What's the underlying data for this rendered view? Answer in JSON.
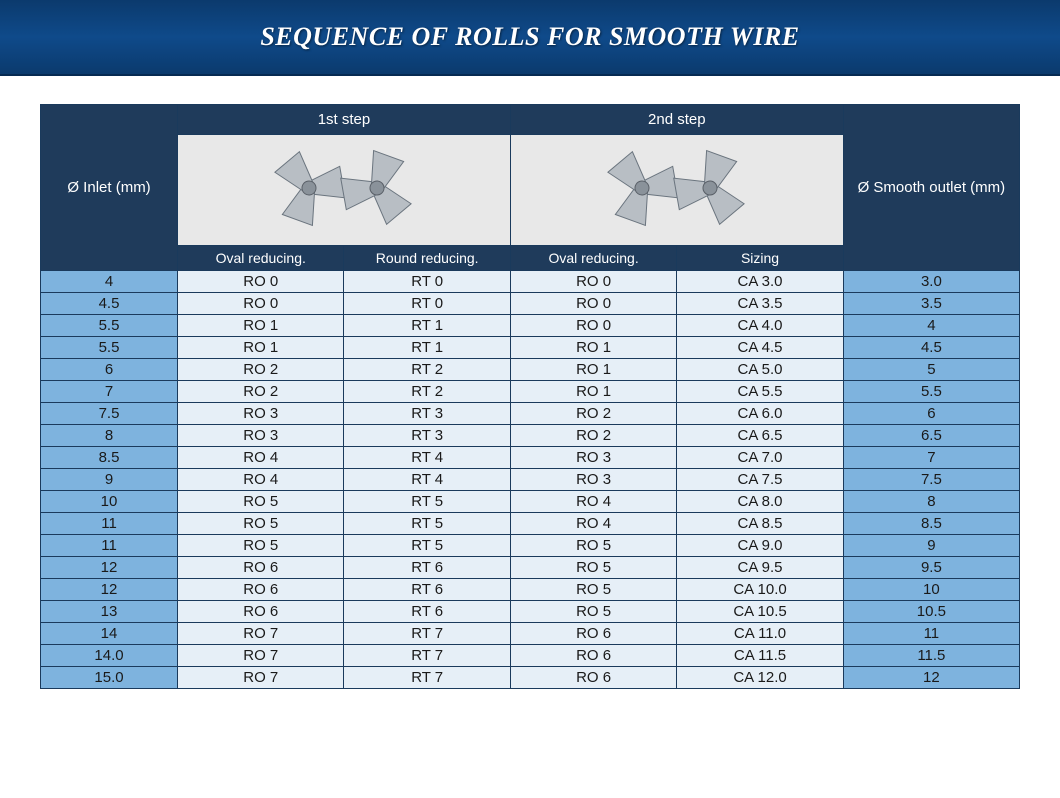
{
  "page": {
    "title": "SEQUENCE OF ROLLS FOR SMOOTH WIRE",
    "banner_bg_top": "#0b3a6d",
    "banner_bg_mid": "#0f4a8a",
    "title_color": "#ffffff"
  },
  "table": {
    "header": {
      "inlet": "Ø Inlet (mm)",
      "step1": "1st step",
      "step2": "2nd step",
      "outlet": "Ø Smooth outlet (mm)",
      "sub": {
        "oval_reducing": "Oval reducing.",
        "round_reducing": "Round reducing.",
        "sizing": "Sizing"
      }
    },
    "colors": {
      "header_bg": "#1f3b5b",
      "header_fg": "#ffffff",
      "image_bg": "#e8e8e8",
      "inlet_bg": "#7eb3de",
      "data_bg": "#e6eff7",
      "outlet_bg": "#7eb3de",
      "border": "#1a3a5c",
      "text": "#1a1a1a",
      "font_size_header": 15,
      "font_size_sub": 14,
      "font_size_body": 15
    },
    "column_widths_pct": [
      14,
      17,
      17,
      17,
      17,
      18
    ],
    "rows": [
      {
        "inlet": "4",
        "s1_oval": "RO 0",
        "s1_round": "RT 0",
        "s2_oval": "RO 0",
        "s2_size": "CA 3.0",
        "outlet": "3.0"
      },
      {
        "inlet": "4.5",
        "s1_oval": "RO 0",
        "s1_round": "RT 0",
        "s2_oval": "RO 0",
        "s2_size": "CA 3.5",
        "outlet": "3.5"
      },
      {
        "inlet": "5.5",
        "s1_oval": "RO 1",
        "s1_round": "RT 1",
        "s2_oval": "RO 0",
        "s2_size": "CA 4.0",
        "outlet": "4"
      },
      {
        "inlet": "5.5",
        "s1_oval": "RO 1",
        "s1_round": "RT 1",
        "s2_oval": "RO 1",
        "s2_size": "CA 4.5",
        "outlet": "4.5"
      },
      {
        "inlet": "6",
        "s1_oval": "RO 2",
        "s1_round": "RT 2",
        "s2_oval": "RO 1",
        "s2_size": "CA 5.0",
        "outlet": "5"
      },
      {
        "inlet": "7",
        "s1_oval": "RO 2",
        "s1_round": "RT 2",
        "s2_oval": "RO 1",
        "s2_size": "CA 5.5",
        "outlet": "5.5"
      },
      {
        "inlet": "7.5",
        "s1_oval": "RO 3",
        "s1_round": "RT 3",
        "s2_oval": "RO 2",
        "s2_size": "CA 6.0",
        "outlet": "6"
      },
      {
        "inlet": "8",
        "s1_oval": "RO 3",
        "s1_round": "RT 3",
        "s2_oval": "RO 2",
        "s2_size": "CA 6.5",
        "outlet": "6.5"
      },
      {
        "inlet": "8.5",
        "s1_oval": "RO 4",
        "s1_round": "RT 4",
        "s2_oval": "RO 3",
        "s2_size": "CA 7.0",
        "outlet": "7"
      },
      {
        "inlet": "9",
        "s1_oval": "RO 4",
        "s1_round": "RT 4",
        "s2_oval": "RO 3",
        "s2_size": "CA 7.5",
        "outlet": "7.5"
      },
      {
        "inlet": "10",
        "s1_oval": "RO 5",
        "s1_round": "RT 5",
        "s2_oval": "RO 4",
        "s2_size": "CA 8.0",
        "outlet": "8"
      },
      {
        "inlet": "11",
        "s1_oval": "RO 5",
        "s1_round": "RT 5",
        "s2_oval": "RO 4",
        "s2_size": "CA 8.5",
        "outlet": "8.5"
      },
      {
        "inlet": "11",
        "s1_oval": "RO 5",
        "s1_round": "RT 5",
        "s2_oval": "RO 5",
        "s2_size": "CA 9.0",
        "outlet": "9"
      },
      {
        "inlet": "12",
        "s1_oval": "RO 6",
        "s1_round": "RT 6",
        "s2_oval": "RO 5",
        "s2_size": "CA 9.5",
        "outlet": "9.5"
      },
      {
        "inlet": "12",
        "s1_oval": "RO 6",
        "s1_round": "RT 6",
        "s2_oval": "RO 5",
        "s2_size": "CA 10.0",
        "outlet": "10"
      },
      {
        "inlet": "13",
        "s1_oval": "RO 6",
        "s1_round": "RT 6",
        "s2_oval": "RO 5",
        "s2_size": "CA 10.5",
        "outlet": "10.5"
      },
      {
        "inlet": "14",
        "s1_oval": "RO 7",
        "s1_round": "RT 7",
        "s2_oval": "RO 6",
        "s2_size": "CA 11.0",
        "outlet": "11"
      },
      {
        "inlet": "14.0",
        "s1_oval": "RO 7",
        "s1_round": "RT 7",
        "s2_oval": "RO 6",
        "s2_size": "CA 11.5",
        "outlet": "11.5"
      },
      {
        "inlet": "15.0",
        "s1_oval": "RO 7",
        "s1_round": "RT 7",
        "s2_oval": "RO 6",
        "s2_size": "CA 12.0",
        "outlet": "12"
      }
    ]
  },
  "roll_icon": {
    "blade_fill": "#b8bec4",
    "blade_stroke": "#6a747e",
    "hub_fill": "#8a929a"
  }
}
